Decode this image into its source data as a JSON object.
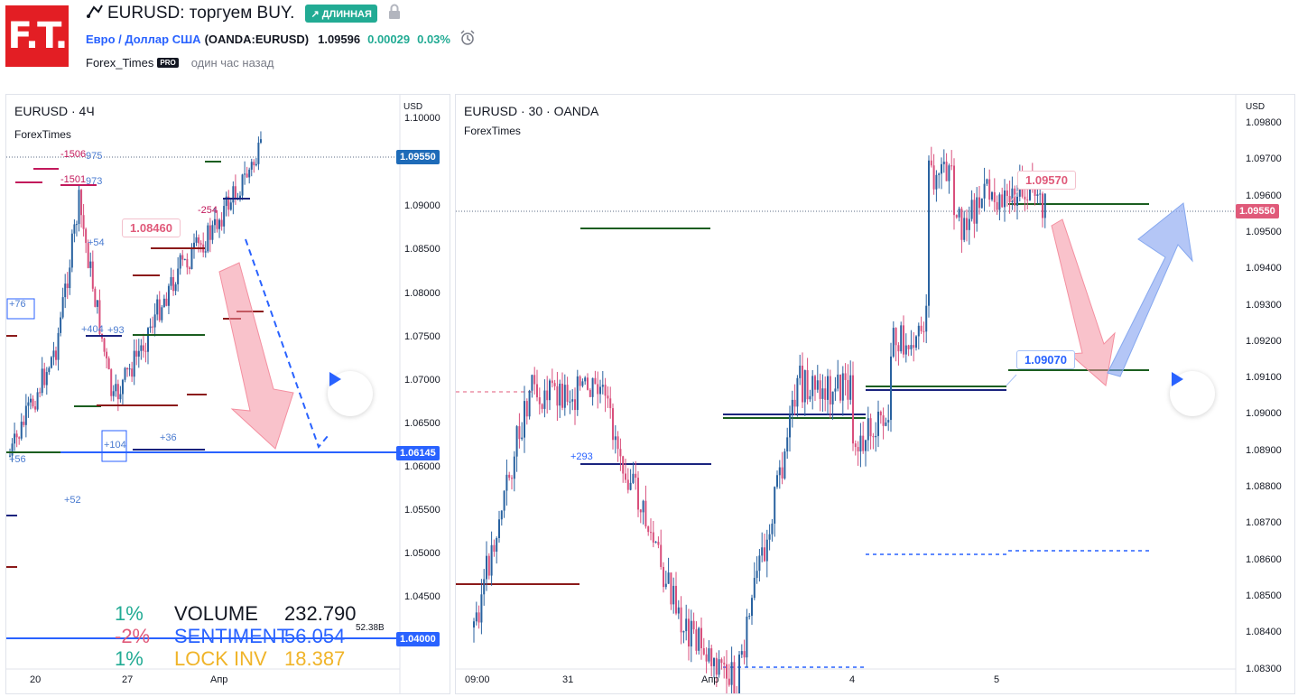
{
  "header": {
    "logo_text": "F.T.",
    "title": "EURUSD: торгуем BUY.",
    "badge": "↗ ДЛИННАЯ",
    "symbol_name": "Евро / Доллар США",
    "symbol_exchange": "(OANDA:EURUSD)",
    "price": "1.09596",
    "change": "0.00029",
    "change_pct": "0.03%",
    "author": "Forex_Times",
    "pro_badge": "PRO",
    "posted": "один час назад"
  },
  "left_chart": {
    "title": "EURUSD · 4Ч",
    "author": "ForexTimes",
    "currency": "USD",
    "price_ticks": [
      "1.10000",
      "1.09000",
      "1.08500",
      "1.08000",
      "1.07500",
      "1.07000",
      "1.06500",
      "1.06000",
      "1.05500",
      "1.05000",
      "1.04500"
    ],
    "time_ticks": [
      "20",
      "27",
      "Апр"
    ],
    "current_price": "1.09550",
    "level_label": "1.06145",
    "level_label2": "1.04000",
    "callout": "1.08460",
    "level_notes": [
      "-1506",
      "-1501",
      "975",
      "973",
      "+54",
      "+404",
      "+93",
      "-254",
      "+76",
      "+104",
      "+36",
      "+52",
      "+56"
    ],
    "legend": [
      {
        "pct": "1%",
        "name": "VOLUME",
        "value": "232.790"
      },
      {
        "pct": "-2%",
        "name": "SENTIMENT",
        "value": "56.054"
      },
      {
        "pct": "1%",
        "name": "LOCK INV",
        "value": "18.387"
      }
    ],
    "small_note": "52.38B"
  },
  "right_chart": {
    "title": "EURUSD · 30 · OANDA",
    "author": "ForexTimes",
    "currency": "USD",
    "price_ticks": [
      "1.09800",
      "1.09700",
      "1.09600",
      "1.09500",
      "1.09400",
      "1.09300",
      "1.09200",
      "1.09100",
      "1.09000",
      "1.08900",
      "1.08800",
      "1.08700",
      "1.08600",
      "1.08500",
      "1.08400",
      "1.08300"
    ],
    "time_ticks": [
      "09:00",
      "31",
      "Апр",
      "4",
      "5"
    ],
    "current_price": "1.09550",
    "callout_sell": "1.09570",
    "callout_buy": "1.09070",
    "level_note": "+293"
  },
  "colors": {
    "up": "#2962a0",
    "down": "#d94f7c",
    "accent": "#2962ff",
    "badge": "#22ab94",
    "logo": "#e31e24"
  }
}
